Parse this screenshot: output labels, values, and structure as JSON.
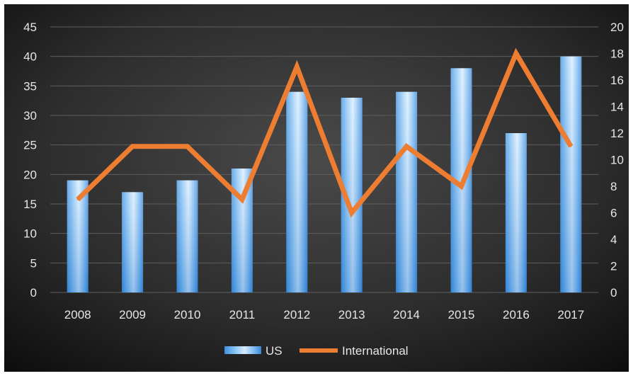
{
  "chart_data": {
    "type": "bar",
    "title": "",
    "xlabel": "",
    "ylabel": "",
    "y2label": "",
    "categories": [
      "2008",
      "2009",
      "2010",
      "2011",
      "2012",
      "2013",
      "2014",
      "2015",
      "2016",
      "2017"
    ],
    "series": [
      {
        "name": "US",
        "type": "bar",
        "axis": "left",
        "color": "#6cb4f2",
        "values": [
          19,
          17,
          19,
          21,
          34,
          33,
          34,
          38,
          27,
          40
        ]
      },
      {
        "name": "International",
        "type": "line",
        "axis": "right",
        "color": "#ed7d31",
        "values": [
          7,
          11,
          11,
          7,
          17,
          6,
          11,
          8,
          18,
          11
        ]
      }
    ],
    "y_left": {
      "min": 0,
      "max": 45,
      "ticks": [
        "0",
        "5",
        "10",
        "15",
        "20",
        "25",
        "30",
        "35",
        "40",
        "45"
      ]
    },
    "y_right": {
      "min": 0,
      "max": 20,
      "ticks": [
        "0",
        "2",
        "4",
        "6",
        "8",
        "10",
        "12",
        "14",
        "16",
        "18",
        "20"
      ]
    },
    "grid": true,
    "legend_position": "bottom",
    "colors": {
      "background_center": "#4a4a4a",
      "background_edge": "#101010",
      "gridline": "#5e5e5e",
      "text": "#e6e6e6"
    }
  }
}
